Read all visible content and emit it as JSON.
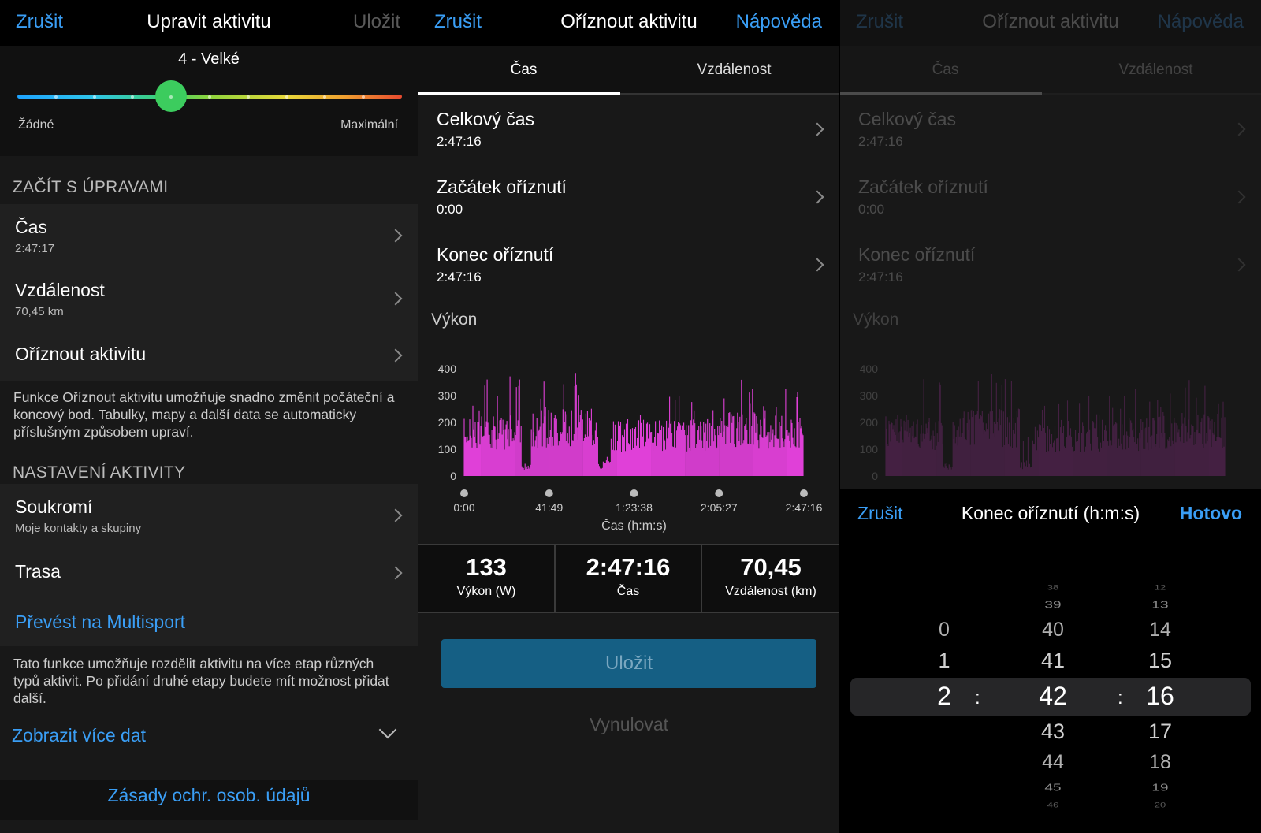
{
  "edit": {
    "cancel": "Zrušit",
    "title": "Upravit aktivitu",
    "save": "Uložit",
    "rating": {
      "value_label": "4 - Velké",
      "min_label": "Žádné",
      "max_label": "Maximální",
      "level": 4,
      "max_level": 10
    },
    "section_edits": "ZAČÍT S ÚPRAVAMI",
    "time": {
      "label": "Čas",
      "value": "2:47:17"
    },
    "distance": {
      "label": "Vzdálenost",
      "value": "70,45 km"
    },
    "trim": {
      "label": "Oříznout aktivitu"
    },
    "trim_note": "Funkce Oříznout aktivitu umožňuje snadno změnit počáteční a koncový bod. Tabulky, mapy a další data se automaticky příslušným způsobem upraví.",
    "section_settings": "NASTAVENÍ AKTIVITY",
    "privacy": {
      "label": "Soukromí",
      "value": "Moje kontakty a skupiny"
    },
    "route": {
      "label": "Trasa"
    },
    "multisport": {
      "label": "Převést na Multisport"
    },
    "multisport_note": "Tato funkce umožňuje rozdělit aktivitu na více etap různých typů aktivit. Po přidání druhé etapy budete mít možnost přidat další.",
    "more": {
      "label": "Zobrazit více dat"
    },
    "privacy_policy": "Zásady ochr. osob. údajů"
  },
  "trim": {
    "cancel": "Zrušit",
    "title": "Oříznout aktivitu",
    "help": "Nápověda",
    "tabs": [
      "Čas",
      "Vzdálenost"
    ],
    "rows": [
      {
        "label": "Celkový čas",
        "value": "2:47:16"
      },
      {
        "label": "Začátek oříznutí",
        "value": "0:00"
      },
      {
        "label": "Konec oříznutí",
        "value": "2:47:16"
      }
    ],
    "chart_title": "Výkon",
    "stats": [
      {
        "value": "133",
        "label": "Výkon (W)"
      },
      {
        "value": "2:47:16",
        "label": "Čas"
      },
      {
        "value": "70,45",
        "label": "Vzdálenost (km)"
      }
    ],
    "save": "Uložit",
    "reset": "Vynulovat"
  },
  "chart_data": {
    "type": "bar",
    "title": "Výkon",
    "xlabel": "Čas (h:m:s)",
    "ylabel": "",
    "y_ticks": [
      0,
      100,
      200,
      300,
      400
    ],
    "ylim": [
      0,
      400
    ],
    "x_ticks": [
      "0:00",
      "41:49",
      "1:23:38",
      "2:05:27",
      "2:47:16"
    ],
    "series_color": "#e040d8",
    "segments": [
      {
        "from_min": 0,
        "to_min": 28,
        "typical": 190,
        "peak": 390
      },
      {
        "from_min": 28,
        "to_min": 33,
        "typical": 40,
        "peak": 120
      },
      {
        "from_min": 33,
        "to_min": 66,
        "typical": 210,
        "peak": 390
      },
      {
        "from_min": 66,
        "to_min": 72,
        "typical": 50,
        "peak": 150
      },
      {
        "from_min": 72,
        "to_min": 110,
        "typical": 175,
        "peak": 300
      },
      {
        "from_min": 110,
        "to_min": 130,
        "typical": 185,
        "peak": 330
      },
      {
        "from_min": 130,
        "to_min": 150,
        "typical": 200,
        "peak": 360
      },
      {
        "from_min": 150,
        "to_min": 167,
        "typical": 195,
        "peak": 340
      }
    ]
  },
  "picker": {
    "cancel": "Zrušit",
    "title": "Konec oříznutí (h:m:s)",
    "done": "Hotovo",
    "hours": [
      "0",
      "1",
      "2"
    ],
    "minutes": [
      "38",
      "39",
      "40",
      "41",
      "42",
      "43",
      "44",
      "45",
      "46"
    ],
    "seconds": [
      "12",
      "13",
      "14",
      "15",
      "16",
      "17",
      "18",
      "19",
      "20"
    ],
    "selected": {
      "hours": "2",
      "minutes": "42",
      "seconds": "16"
    },
    "separator": ":"
  },
  "colors": {
    "accent": "#3a9ef5",
    "power": "#e040d8",
    "save_button": "#155f84",
    "slider_thumb": "#3ccc5e"
  }
}
